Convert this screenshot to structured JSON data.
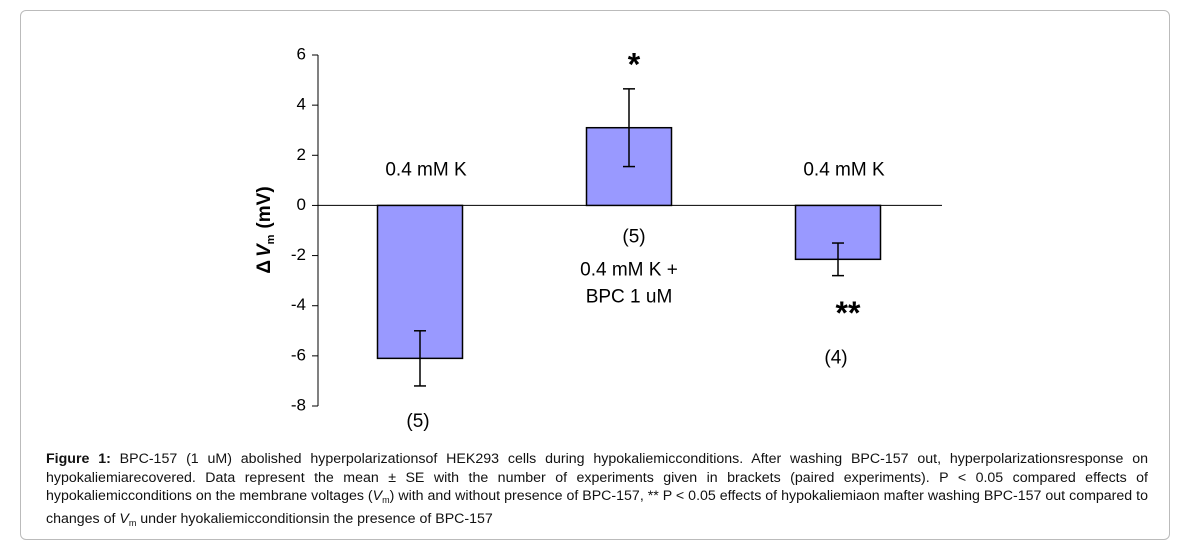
{
  "chart_data": {
    "type": "bar",
    "y_label": {
      "symbol": "Δ",
      "var": "V",
      "sub": "m",
      "unit": "(mV)"
    },
    "categories": [
      [
        "0.4 mM K"
      ],
      [
        "0.4 mM K +",
        "BPC 1 uM"
      ],
      [
        "0.4 mM K"
      ]
    ],
    "values": [
      -6.1,
      3.1,
      -2.15
    ],
    "errors": [
      1.1,
      1.55,
      0.65
    ],
    "n_labels": [
      "(5)",
      "(5)",
      "(4)"
    ],
    "significance": [
      null,
      "*",
      "**"
    ],
    "color": "#9999ff",
    "ylim": [
      -8,
      6
    ],
    "yticks": [
      -8,
      -6,
      -4,
      -2,
      0,
      2,
      4,
      6
    ]
  },
  "caption": {
    "label": "Figure 1:",
    "text": [
      "BPC-157 (1 uM) abolished hyperpolarizationsof HEK293 cells during hypokaliemicconditions. After washing BPC-157 out, hyperpolarizationsresponse on hypokaliemiarecovered. Data represent the mean ± SE with the number of experiments given in brackets (paired experiments). P < 0.05 compared effects of hypokaliemicconditions on the membrane voltages (",
      "V",
      "m",
      ") with and without presence of BPC-157, ** P < 0.05 effects of hypokaliemiaon mafter washing BPC-157 out compared to changes of ",
      "V",
      "m",
      " under hyokaliemicconditionsin the presence of BPC-157"
    ]
  }
}
